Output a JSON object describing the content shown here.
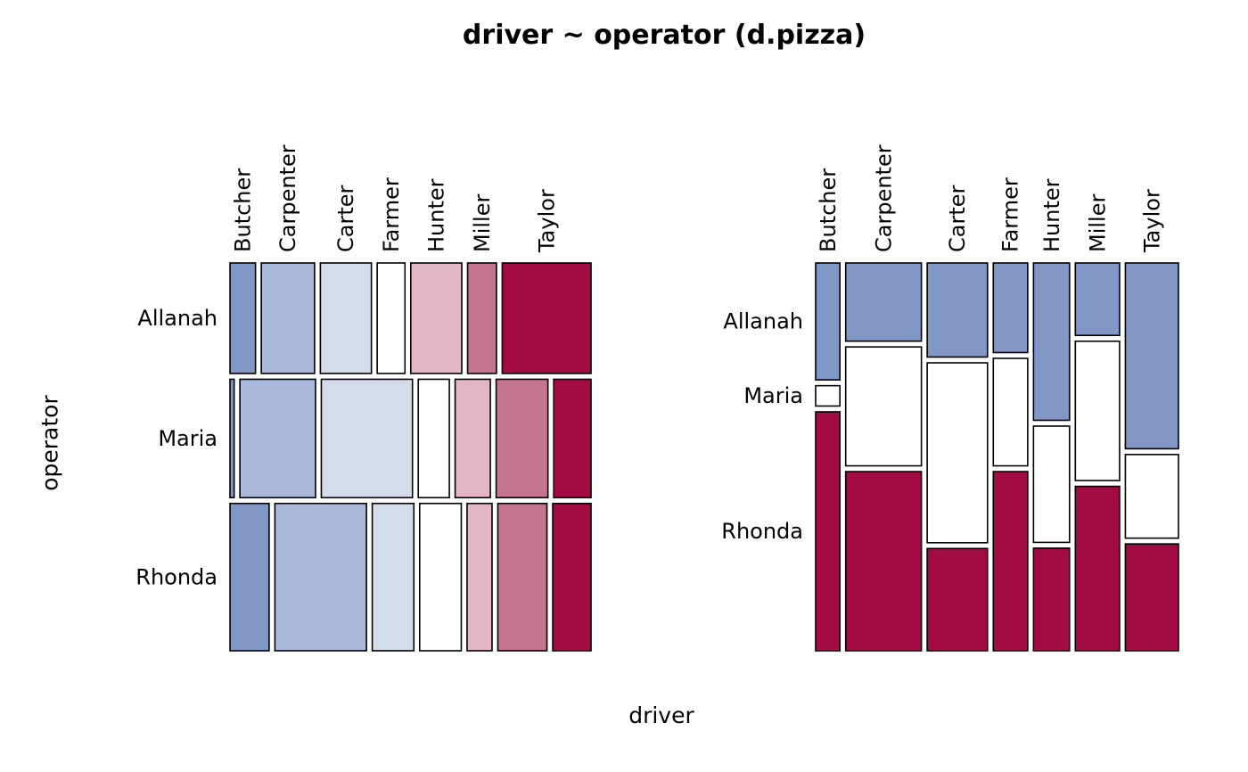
{
  "chart_data": {
    "type": "mosaic",
    "title": "driver ~ operator (d.pizza)",
    "xlabel": "driver",
    "ylabel": "operator",
    "row_variable": "operator",
    "col_variable": "driver",
    "operators": [
      "Allanah",
      "Maria",
      "Rhonda"
    ],
    "drivers": [
      "Butcher",
      "Carpenter",
      "Carter",
      "Farmer",
      "Hunter",
      "Miller",
      "Taylor"
    ],
    "counts": [
      [
        23,
        48,
        46,
        25,
        46,
        26,
        80
      ],
      [
        4,
        73,
        88,
        30,
        34,
        50,
        36
      ],
      [
        47,
        110,
        50,
        50,
        30,
        59,
        46
      ]
    ],
    "panels": [
      {
        "position": "left",
        "split_first": "operator (rows)",
        "colored_by": "driver"
      },
      {
        "position": "right",
        "split_first": "driver (columns)",
        "colored_by": "operator"
      }
    ],
    "driver_palette": [
      "#8197c6",
      "#aab9da",
      "#d4dcec",
      "#ffffff",
      "#e2b6c6",
      "#c5758d",
      "#a30b45"
    ],
    "operator_palette": [
      "#8197c6",
      "#ffffff",
      "#a30b45"
    ],
    "legend": false,
    "grid": false,
    "background": "#ffffff",
    "border_color": "#000000"
  }
}
